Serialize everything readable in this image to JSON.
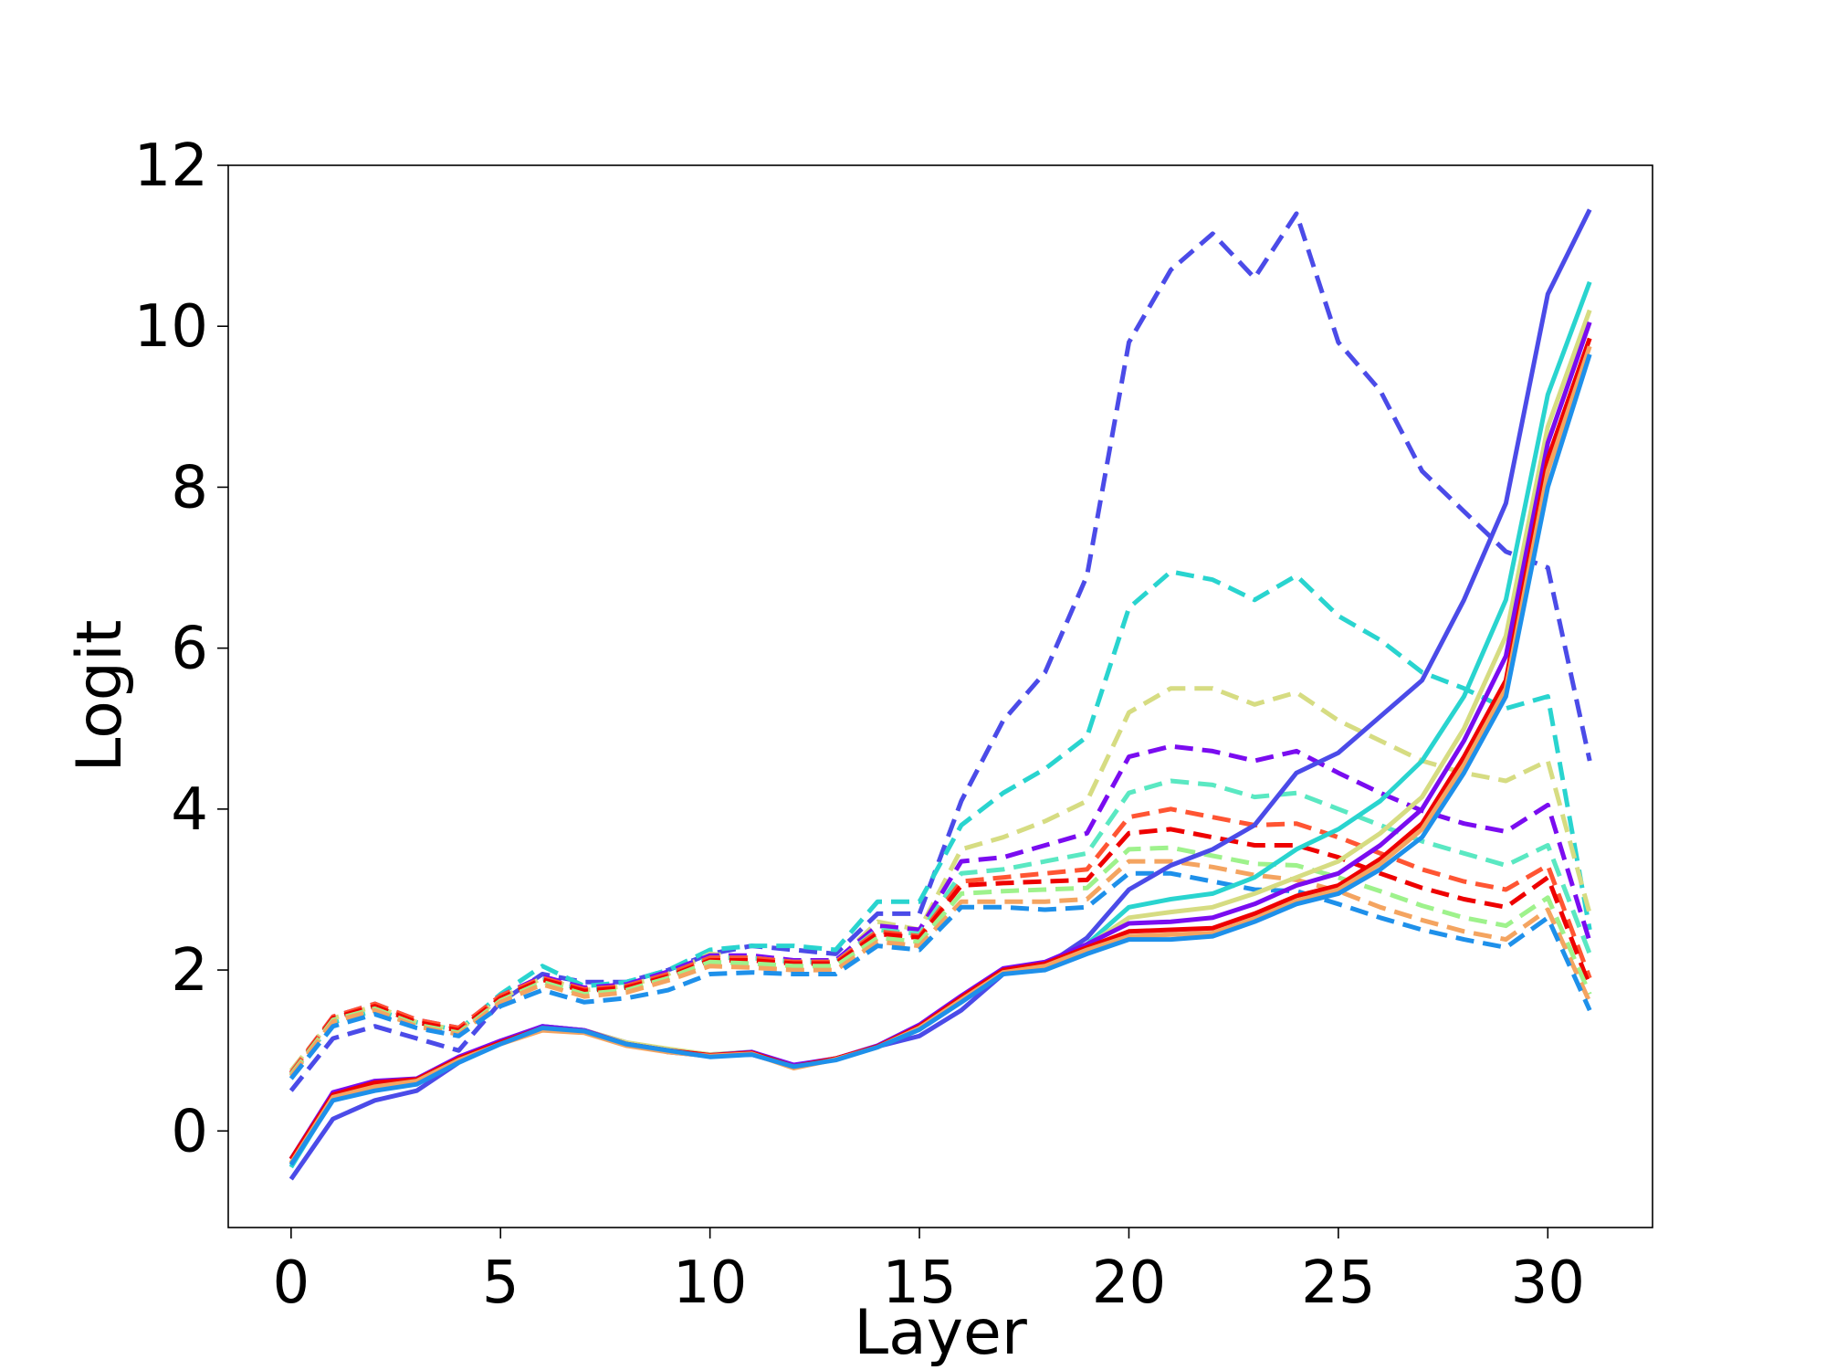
{
  "chart_data": {
    "type": "line",
    "title": "",
    "xlabel": "Layer",
    "ylabel": "Logit",
    "xlim": [
      -1.5,
      32.5
    ],
    "ylim": [
      -1.2,
      12
    ],
    "xticks": [
      0,
      5,
      10,
      15,
      20,
      25,
      30
    ],
    "yticks": [
      0,
      2,
      4,
      6,
      8,
      10,
      12
    ],
    "grid": false,
    "legend": "none",
    "x": [
      0,
      1,
      2,
      3,
      4,
      5,
      6,
      7,
      8,
      9,
      10,
      11,
      12,
      13,
      14,
      15,
      16,
      17,
      18,
      19,
      20,
      21,
      22,
      23,
      24,
      25,
      26,
      27,
      28,
      29,
      30,
      31
    ],
    "series": [
      {
        "color": "#4b4be8",
        "style": "dashed",
        "values": [
          0.5,
          1.15,
          1.3,
          1.15,
          1.0,
          1.6,
          1.95,
          1.85,
          1.85,
          2.0,
          2.2,
          2.3,
          2.25,
          2.2,
          2.7,
          2.7,
          4.1,
          5.1,
          5.7,
          6.9,
          9.8,
          10.7,
          11.15,
          10.6,
          11.4,
          9.8,
          9.2,
          8.2,
          7.7,
          7.2,
          7.0,
          4.6
        ]
      },
      {
        "color": "#29d4cf",
        "style": "dashed",
        "values": [
          0.7,
          1.35,
          1.5,
          1.35,
          1.25,
          1.7,
          2.05,
          1.8,
          1.85,
          2.0,
          2.25,
          2.3,
          2.3,
          2.25,
          2.85,
          2.85,
          3.8,
          4.2,
          4.5,
          4.9,
          6.5,
          6.95,
          6.85,
          6.6,
          6.9,
          6.4,
          6.1,
          5.7,
          5.5,
          5.25,
          5.4,
          2.5
        ]
      },
      {
        "color": "#d6dc82",
        "style": "dashed",
        "values": [
          0.75,
          1.4,
          1.55,
          1.35,
          1.25,
          1.65,
          1.9,
          1.75,
          1.8,
          1.95,
          2.2,
          2.15,
          2.1,
          2.1,
          2.6,
          2.5,
          3.5,
          3.65,
          3.85,
          4.1,
          5.2,
          5.5,
          5.5,
          5.3,
          5.45,
          5.1,
          4.85,
          4.6,
          4.45,
          4.35,
          4.6,
          2.7
        ]
      },
      {
        "color": "#7a0cf0",
        "style": "dashed",
        "values": [
          0.72,
          1.42,
          1.58,
          1.38,
          1.28,
          1.68,
          1.92,
          1.78,
          1.82,
          1.98,
          2.18,
          2.18,
          2.12,
          2.12,
          2.55,
          2.5,
          3.35,
          3.4,
          3.55,
          3.7,
          4.65,
          4.78,
          4.72,
          4.6,
          4.72,
          4.45,
          4.2,
          3.98,
          3.82,
          3.72,
          4.05,
          2.35
        ]
      },
      {
        "color": "#5ae8c2",
        "style": "dashed",
        "values": [
          0.7,
          1.4,
          1.55,
          1.35,
          1.25,
          1.65,
          1.9,
          1.75,
          1.8,
          1.95,
          2.15,
          2.15,
          2.1,
          2.1,
          2.5,
          2.45,
          3.2,
          3.25,
          3.35,
          3.45,
          4.2,
          4.35,
          4.3,
          4.15,
          4.2,
          4.0,
          3.8,
          3.6,
          3.45,
          3.3,
          3.55,
          2.2
        ]
      },
      {
        "color": "#ff5533",
        "style": "dashed",
        "values": [
          0.72,
          1.42,
          1.58,
          1.38,
          1.28,
          1.68,
          1.9,
          1.76,
          1.8,
          1.95,
          2.15,
          2.15,
          2.1,
          2.1,
          2.48,
          2.42,
          3.1,
          3.15,
          3.2,
          3.25,
          3.9,
          4.0,
          3.9,
          3.8,
          3.82,
          3.65,
          3.45,
          3.25,
          3.1,
          3.0,
          3.3,
          1.9
        ]
      },
      {
        "color": "#ee0000",
        "style": "dashed",
        "values": [
          0.7,
          1.4,
          1.55,
          1.35,
          1.25,
          1.65,
          1.88,
          1.74,
          1.78,
          1.92,
          2.12,
          2.12,
          2.08,
          2.08,
          2.45,
          2.4,
          3.05,
          3.08,
          3.1,
          3.12,
          3.7,
          3.75,
          3.65,
          3.55,
          3.55,
          3.4,
          3.2,
          3.02,
          2.88,
          2.78,
          3.15,
          1.8
        ]
      },
      {
        "color": "#9ef28c",
        "style": "dashed",
        "values": [
          0.7,
          1.38,
          1.52,
          1.32,
          1.22,
          1.62,
          1.85,
          1.7,
          1.75,
          1.9,
          2.1,
          2.08,
          2.05,
          2.05,
          2.4,
          2.35,
          2.95,
          2.98,
          3.0,
          3.02,
          3.5,
          3.52,
          3.42,
          3.32,
          3.3,
          3.15,
          2.98,
          2.8,
          2.65,
          2.55,
          2.9,
          1.7
        ]
      },
      {
        "color": "#f4a460",
        "style": "dashed",
        "values": [
          0.68,
          1.36,
          1.5,
          1.3,
          1.2,
          1.6,
          1.82,
          1.67,
          1.72,
          1.87,
          2.05,
          2.03,
          2.0,
          2.0,
          2.35,
          2.3,
          2.85,
          2.85,
          2.85,
          2.88,
          3.35,
          3.35,
          3.28,
          3.18,
          3.12,
          2.98,
          2.78,
          2.62,
          2.48,
          2.38,
          2.75,
          1.6
        ]
      },
      {
        "color": "#1e90ea",
        "style": "dashed",
        "values": [
          0.65,
          1.3,
          1.45,
          1.28,
          1.18,
          1.55,
          1.75,
          1.6,
          1.65,
          1.75,
          1.95,
          1.97,
          1.95,
          1.95,
          2.3,
          2.25,
          2.78,
          2.78,
          2.75,
          2.78,
          3.2,
          3.2,
          3.1,
          3.0,
          2.98,
          2.82,
          2.65,
          2.5,
          2.38,
          2.28,
          2.65,
          1.5
        ]
      },
      {
        "color": "#4b4be8",
        "style": "solid",
        "values": [
          -0.6,
          0.15,
          0.38,
          0.5,
          0.85,
          1.1,
          1.3,
          1.25,
          1.1,
          0.98,
          0.93,
          0.95,
          0.8,
          0.9,
          1.05,
          1.18,
          1.5,
          1.95,
          2.05,
          2.4,
          3.0,
          3.3,
          3.5,
          3.8,
          4.45,
          4.7,
          5.15,
          5.6,
          6.6,
          7.8,
          10.4,
          11.45
        ]
      },
      {
        "color": "#29d4cf",
        "style": "solid",
        "values": [
          -0.45,
          0.4,
          0.52,
          0.6,
          0.9,
          1.1,
          1.3,
          1.25,
          1.08,
          1.0,
          0.95,
          0.98,
          0.8,
          0.9,
          1.05,
          1.3,
          1.6,
          1.98,
          2.08,
          2.32,
          2.78,
          2.88,
          2.95,
          3.15,
          3.5,
          3.75,
          4.1,
          4.6,
          5.4,
          6.6,
          9.15,
          10.55
        ]
      },
      {
        "color": "#d6dc82",
        "style": "solid",
        "values": [
          -0.4,
          0.42,
          0.55,
          0.62,
          0.9,
          1.12,
          1.28,
          1.25,
          1.1,
          1.02,
          0.95,
          0.98,
          0.8,
          0.9,
          1.05,
          1.3,
          1.65,
          2.0,
          2.1,
          2.3,
          2.65,
          2.72,
          2.78,
          2.95,
          3.15,
          3.35,
          3.7,
          4.15,
          5.0,
          6.15,
          8.75,
          10.2
        ]
      },
      {
        "color": "#7a0cf0",
        "style": "solid",
        "values": [
          -0.35,
          0.48,
          0.62,
          0.65,
          0.92,
          1.12,
          1.3,
          1.25,
          1.08,
          1.0,
          0.94,
          0.98,
          0.82,
          0.9,
          1.06,
          1.32,
          1.68,
          2.02,
          2.1,
          2.32,
          2.58,
          2.6,
          2.65,
          2.82,
          3.05,
          3.2,
          3.55,
          4.0,
          4.85,
          5.9,
          8.55,
          10.05
        ]
      },
      {
        "color": "#ee0000",
        "style": "solid",
        "values": [
          -0.35,
          0.45,
          0.6,
          0.64,
          0.9,
          1.1,
          1.28,
          1.24,
          1.08,
          1.0,
          0.94,
          0.97,
          0.8,
          0.9,
          1.05,
          1.3,
          1.66,
          2.0,
          2.08,
          2.28,
          2.48,
          2.5,
          2.52,
          2.7,
          2.92,
          3.05,
          3.38,
          3.82,
          4.65,
          5.6,
          8.35,
          9.85
        ]
      },
      {
        "color": "#f4a460",
        "style": "solid",
        "values": [
          -0.4,
          0.42,
          0.55,
          0.62,
          0.88,
          1.08,
          1.25,
          1.22,
          1.06,
          0.98,
          0.93,
          0.96,
          0.78,
          0.89,
          1.04,
          1.28,
          1.63,
          1.97,
          2.05,
          2.25,
          2.42,
          2.44,
          2.46,
          2.64,
          2.86,
          3.0,
          3.32,
          3.75,
          4.55,
          5.5,
          8.2,
          9.75
        ]
      },
      {
        "color": "#1e90ea",
        "style": "solid",
        "values": [
          -0.42,
          0.38,
          0.5,
          0.58,
          0.85,
          1.08,
          1.28,
          1.24,
          1.08,
          1.0,
          0.92,
          0.95,
          0.8,
          0.88,
          1.04,
          1.26,
          1.6,
          1.95,
          2.0,
          2.2,
          2.38,
          2.38,
          2.42,
          2.6,
          2.82,
          2.95,
          3.25,
          3.65,
          4.45,
          5.4,
          8.0,
          9.65
        ]
      }
    ]
  }
}
